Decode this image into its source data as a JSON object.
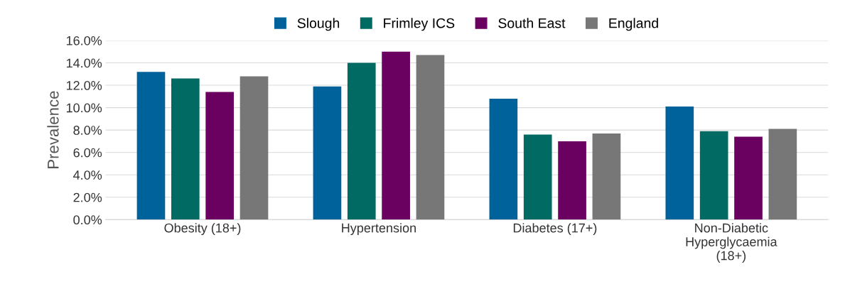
{
  "chart_data": {
    "type": "bar",
    "ylabel": "Prevalence",
    "categories": [
      "Obesity (18+)",
      "Hypertension",
      "Diabetes (17+)",
      "Non-Diabetic\nHyperglycaemia\n(18+)"
    ],
    "series": [
      {
        "name": "Slough",
        "color": "#00629b",
        "values": [
          13.2,
          11.9,
          10.8,
          10.1
        ]
      },
      {
        "name": "Frimley ICS",
        "color": "#006a63",
        "values": [
          12.6,
          14.0,
          7.6,
          7.9
        ]
      },
      {
        "name": "South East",
        "color": "#6a005f",
        "values": [
          11.4,
          15.0,
          7.0,
          7.4
        ]
      },
      {
        "name": "England",
        "color": "#777777",
        "values": [
          12.8,
          14.7,
          7.7,
          8.1
        ]
      }
    ],
    "ylim": [
      0,
      16
    ],
    "yticks": [
      {
        "value": 0,
        "label": "0.0%"
      },
      {
        "value": 2,
        "label": "2.0%"
      },
      {
        "value": 4,
        "label": "4.0%"
      },
      {
        "value": 6,
        "label": "6.0%"
      },
      {
        "value": 8,
        "label": "8.0%"
      },
      {
        "value": 10,
        "label": "10.0%"
      },
      {
        "value": 12,
        "label": "12.0%"
      },
      {
        "value": 14,
        "label": "14.0%"
      },
      {
        "value": 16,
        "label": "16.0%"
      }
    ],
    "grid": "y",
    "legend": "top"
  }
}
